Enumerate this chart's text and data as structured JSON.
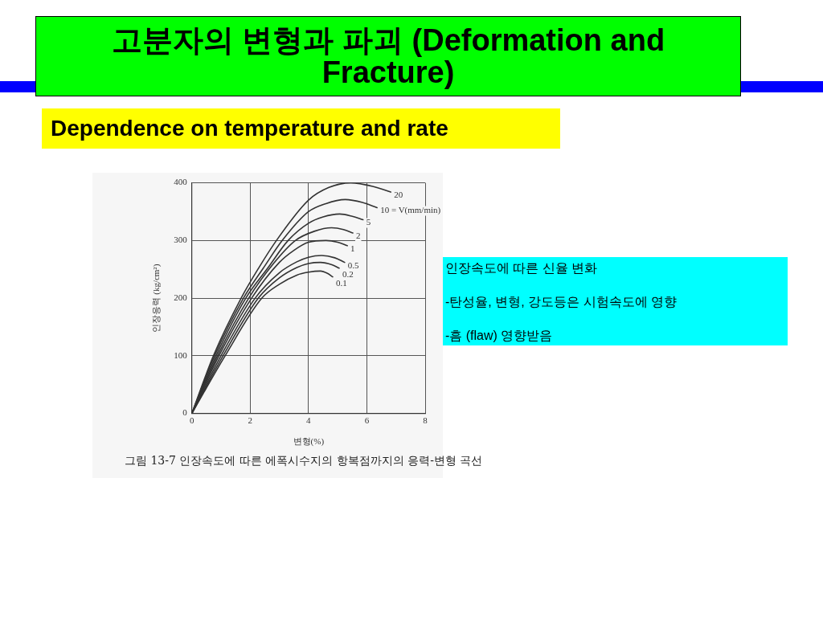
{
  "chart_data": {
    "type": "line",
    "title": "고분자의 변형과 파괴 (Deformation and Fracture)",
    "subtitle": "Dependence on temperature and rate",
    "xlabel": "변형(%)",
    "ylabel": "인장응력 (kg/cm²)",
    "annotations": [
      "인장속도에 따른 신율 변화",
      "-탄성율, 변형, 강도등은 시험속도에 영향",
      "-흠 (flaw) 영향받음",
      "그림 13-7  인장속도에 따른 에폭시수지의 항복점까지의 응력-변형 곡선"
    ],
    "xlim": [
      0,
      8
    ],
    "xticks": [
      0,
      2,
      4,
      6,
      8
    ],
    "ylim": [
      0,
      400
    ],
    "yticks": [
      0,
      100,
      200,
      300,
      400
    ],
    "grid": true,
    "marker": "none",
    "line_style": "solid",
    "series": [
      {
        "name": "20",
        "color": "#333333",
        "x": [
          0,
          0.74,
          1.69,
          2.3,
          2.9,
          4,
          4.7,
          5.45,
          6.2,
          6.82
        ],
        "values": [
          0,
          100,
          200,
          253,
          300,
          370,
          392,
          400,
          394,
          384
        ]
      },
      {
        "name": "10 = V(mm/min)",
        "color": "#333333",
        "x": [
          0,
          0.78,
          1.77,
          2.45,
          3.1,
          4,
          4.6,
          5.26,
          5.85,
          6.35
        ],
        "values": [
          0,
          100,
          200,
          252,
          300,
          350,
          364,
          371,
          366,
          357
        ]
      },
      {
        "name": "5",
        "color": "#333333",
        "x": [
          0,
          0.83,
          1.85,
          2.6,
          3.3,
          4,
          4.5,
          5.07,
          5.5,
          5.87
        ],
        "values": [
          0,
          100,
          200,
          252,
          300,
          330,
          341,
          346,
          342,
          336
        ]
      },
      {
        "name": "2",
        "color": "#333333",
        "x": [
          0,
          0.88,
          1.95,
          2.8,
          3.55,
          4.2,
          4.79,
          5.2,
          5.52
        ],
        "values": [
          0,
          100,
          200,
          260,
          300,
          316,
          322,
          319,
          313
        ]
      },
      {
        "name": "1",
        "color": "#333333",
        "x": [
          0,
          0.93,
          2.05,
          3,
          3.5,
          4,
          4.6,
          5,
          5.33
        ],
        "values": [
          0,
          100,
          200,
          262,
          283,
          297,
          300,
          297,
          291
        ]
      },
      {
        "name": "0.5",
        "color": "#333333",
        "x": [
          0,
          1,
          2.17,
          3,
          3.6,
          4,
          4.45,
          4.9,
          5.24
        ],
        "values": [
          0,
          100,
          200,
          244,
          263,
          271,
          274,
          270,
          262
        ]
      },
      {
        "name": "0.2",
        "color": "#333333",
        "x": [
          0,
          1.07,
          2.28,
          3,
          3.6,
          4,
          4.41,
          4.8,
          5.05
        ],
        "values": [
          0,
          100,
          200,
          235,
          253,
          260,
          262,
          258,
          252
        ]
      },
      {
        "name": "0.1",
        "color": "#333333",
        "x": [
          0,
          1.14,
          2.4,
          3,
          3.6,
          4,
          4.41,
          4.65,
          4.83
        ],
        "values": [
          0,
          100,
          200,
          224,
          240,
          245,
          247,
          243,
          237
        ]
      }
    ]
  }
}
